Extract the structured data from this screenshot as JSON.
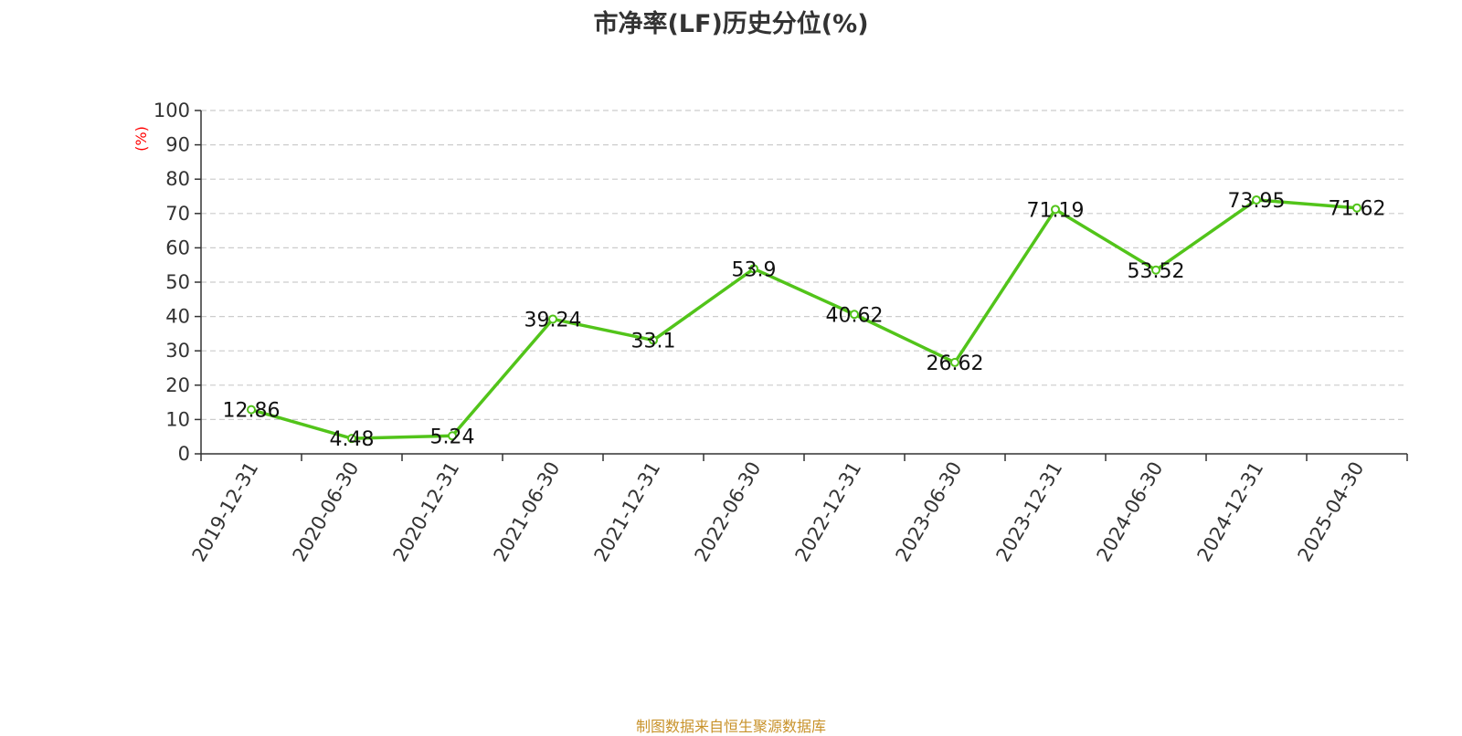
{
  "chart_data": {
    "type": "line",
    "title": "市净率(LF)历史分位(%)",
    "ylabel": "(%)",
    "xlabel": "",
    "categories": [
      "2019-12-31",
      "2020-06-30",
      "2020-12-31",
      "2021-06-30",
      "2021-12-31",
      "2022-06-30",
      "2022-12-31",
      "2023-06-30",
      "2023-12-31",
      "2024-06-30",
      "2024-12-31",
      "2025-04-30"
    ],
    "series": [
      {
        "values": [
          12.86,
          4.48,
          5.24,
          39.24,
          33.1,
          53.9,
          40.62,
          26.62,
          71.19,
          53.52,
          73.95,
          71.62
        ]
      }
    ],
    "data_labels": [
      "12.86",
      "4.48",
      "5.24",
      "39.24",
      "33.1",
      "53.9",
      "40.62",
      "26.62",
      "71.19",
      "53.52",
      "73.95",
      "71.62"
    ],
    "ylim": [
      0,
      100
    ],
    "yticks": [
      "0",
      "10",
      "20",
      "30",
      "40",
      "50",
      "60",
      "70",
      "80",
      "90",
      "100"
    ],
    "grid": true,
    "legend": "none",
    "colors": {
      "line": "#52c41a",
      "ylabel": "#ff0000",
      "grid": "#cccccc",
      "axis": "#333333"
    }
  },
  "footer": {
    "source": "制图数据来自恒生聚源数据库"
  }
}
